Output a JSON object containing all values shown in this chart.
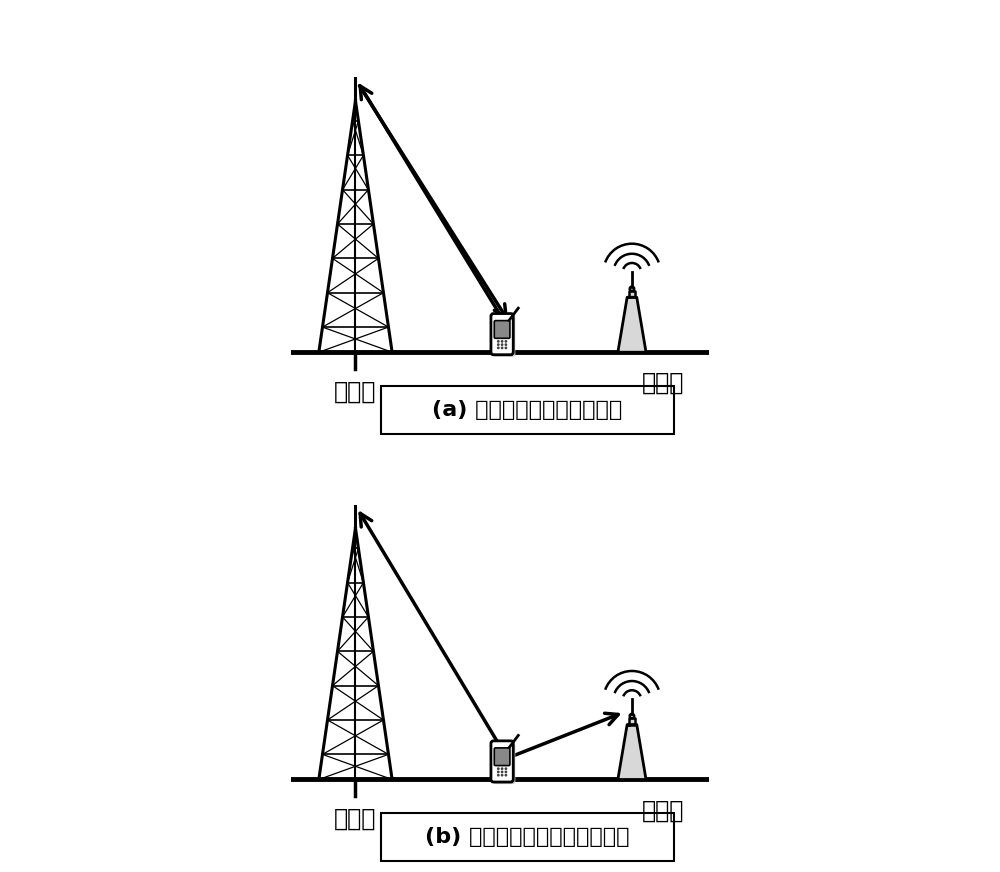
{
  "bg_color": "#ffffff",
  "panel_a_label": "(a) 用户上下行的对称性接入",
  "panel_b_label": "(b) 用户上下行的非对称性接入",
  "macro_label": "宏基站",
  "micro_label": "微基站",
  "fig_width": 10.0,
  "fig_height": 8.72
}
